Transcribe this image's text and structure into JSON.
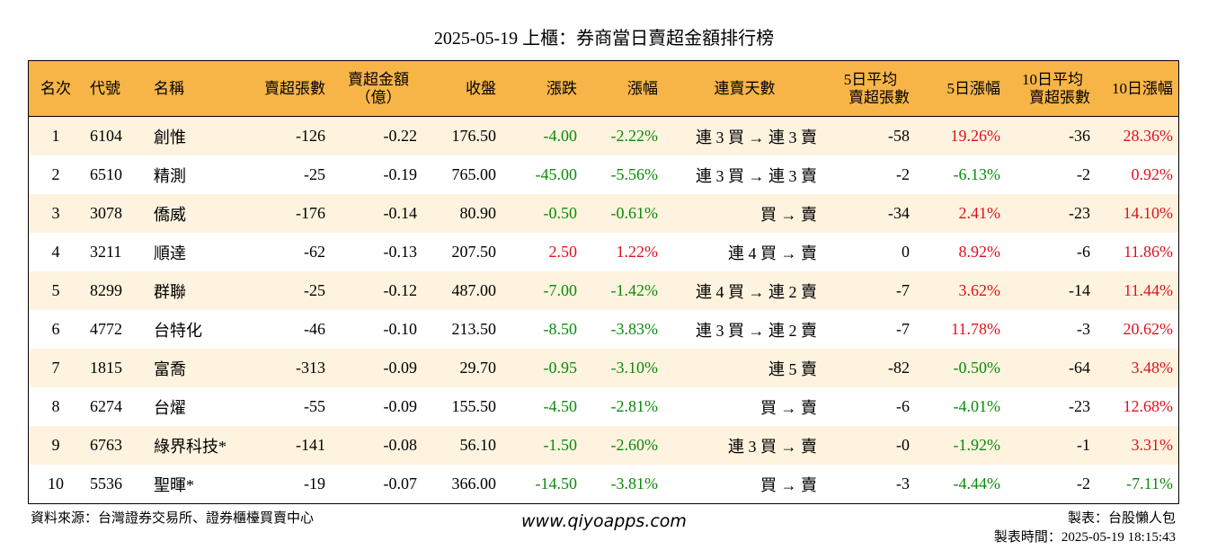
{
  "page_title": "2025-05-19 上櫃：券商當日賣超金額排行榜",
  "headers": {
    "rank": "名次",
    "code": "代號",
    "name": "名稱",
    "sell_lots": "賣超張數",
    "sell_amount_line1": "賣超金額",
    "sell_amount_line2": "（億）",
    "close": "收盤",
    "change": "漲跌",
    "change_pct": "漲幅",
    "streak": "連賣天數",
    "avg5_line1": "5日平均",
    "avg5_line2": "賣超張數",
    "chg5": "5日漲幅",
    "avg10_line1": "10日平均",
    "avg10_line2": "賣超張數",
    "chg10": "10日漲幅"
  },
  "rows": [
    {
      "rank": "1",
      "code": "6104",
      "name": "創惟",
      "sell_lots": "-126",
      "sell_amount": "-0.22",
      "close": "176.50",
      "change": "-4.00",
      "change_pct": "-2.22%",
      "streak": "連 3 買 → 連 3 賣",
      "avg5": "-58",
      "chg5": "19.26%",
      "avg10": "-36",
      "chg10": "28.36%"
    },
    {
      "rank": "2",
      "code": "6510",
      "name": "精測",
      "sell_lots": "-25",
      "sell_amount": "-0.19",
      "close": "765.00",
      "change": "-45.00",
      "change_pct": "-5.56%",
      "streak": "連 3 買 → 連 3 賣",
      "avg5": "-2",
      "chg5": "-6.13%",
      "avg10": "-2",
      "chg10": "0.92%"
    },
    {
      "rank": "3",
      "code": "3078",
      "name": "僑威",
      "sell_lots": "-176",
      "sell_amount": "-0.14",
      "close": "80.90",
      "change": "-0.50",
      "change_pct": "-0.61%",
      "streak": "買 → 賣",
      "avg5": "-34",
      "chg5": "2.41%",
      "avg10": "-23",
      "chg10": "14.10%"
    },
    {
      "rank": "4",
      "code": "3211",
      "name": "順達",
      "sell_lots": "-62",
      "sell_amount": "-0.13",
      "close": "207.50",
      "change": "2.50",
      "change_pct": "1.22%",
      "streak": "連 4 買 → 賣",
      "avg5": "0",
      "chg5": "8.92%",
      "avg10": "-6",
      "chg10": "11.86%"
    },
    {
      "rank": "5",
      "code": "8299",
      "name": "群聯",
      "sell_lots": "-25",
      "sell_amount": "-0.12",
      "close": "487.00",
      "change": "-7.00",
      "change_pct": "-1.42%",
      "streak": "連 4 買 → 連 2 賣",
      "avg5": "-7",
      "chg5": "3.62%",
      "avg10": "-14",
      "chg10": "11.44%"
    },
    {
      "rank": "6",
      "code": "4772",
      "name": "台特化",
      "sell_lots": "-46",
      "sell_amount": "-0.10",
      "close": "213.50",
      "change": "-8.50",
      "change_pct": "-3.83%",
      "streak": "連 3 買 → 連 2 賣",
      "avg5": "-7",
      "chg5": "11.78%",
      "avg10": "-3",
      "chg10": "20.62%"
    },
    {
      "rank": "7",
      "code": "1815",
      "name": "富喬",
      "sell_lots": "-313",
      "sell_amount": "-0.09",
      "close": "29.70",
      "change": "-0.95",
      "change_pct": "-3.10%",
      "streak": "連 5 賣",
      "avg5": "-82",
      "chg5": "-0.50%",
      "avg10": "-64",
      "chg10": "3.48%"
    },
    {
      "rank": "8",
      "code": "6274",
      "name": "台燿",
      "sell_lots": "-55",
      "sell_amount": "-0.09",
      "close": "155.50",
      "change": "-4.50",
      "change_pct": "-2.81%",
      "streak": "買 → 賣",
      "avg5": "-6",
      "chg5": "-4.01%",
      "avg10": "-23",
      "chg10": "12.68%"
    },
    {
      "rank": "9",
      "code": "6763",
      "name": "綠界科技*",
      "sell_lots": "-141",
      "sell_amount": "-0.08",
      "close": "56.10",
      "change": "-1.50",
      "change_pct": "-2.60%",
      "streak": "連 3 買 → 賣",
      "avg5": "-0",
      "chg5": "-1.92%",
      "avg10": "-1",
      "chg10": "3.31%"
    },
    {
      "rank": "10",
      "code": "5536",
      "name": "聖暉*",
      "sell_lots": "-19",
      "sell_amount": "-0.07",
      "close": "366.00",
      "change": "-14.50",
      "change_pct": "-3.81%",
      "streak": "買 → 賣",
      "avg5": "-3",
      "chg5": "-4.44%",
      "avg10": "-2",
      "chg10": "-7.11%"
    }
  ],
  "footer": {
    "source": "資料來源：台灣證券交易所、證券櫃檯買賣中心",
    "website": "www.qiyoapps.com",
    "maker": "製表：台股懶人包",
    "made_time": "製表時間：2025-05-19 18:15:43"
  },
  "colors": {
    "header_bg": "#f7b548",
    "stripe_bg": "#fef3df",
    "negative": "#0a8a0a",
    "positive": "#e0101e"
  }
}
